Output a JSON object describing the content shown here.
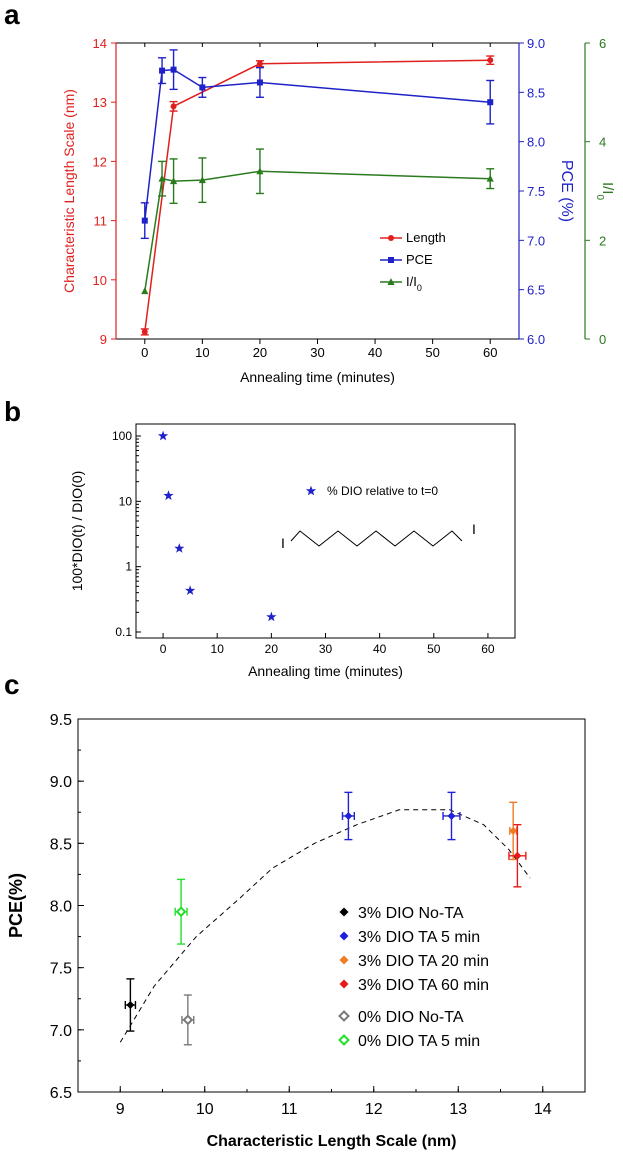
{
  "panels": [
    "a",
    "b",
    "c"
  ],
  "chart_data": [
    {
      "panel": "a",
      "type": "line",
      "xlabel": "Annealing time (minutes)",
      "x_ticks": [
        "0",
        "10",
        "20",
        "30",
        "40",
        "50",
        "60"
      ],
      "xlim": [
        -5,
        65
      ],
      "axes": [
        {
          "id": "left",
          "label": "Characteristic Length Scale (nm)",
          "color": "#e0201f",
          "lim": [
            9,
            14
          ],
          "ticks": [
            "9",
            "10",
            "11",
            "12",
            "13",
            "14"
          ]
        },
        {
          "id": "right1",
          "label": "PCE (%)",
          "color": "#1f22c8",
          "lim": [
            6.0,
            9.0
          ],
          "ticks": [
            "6.0",
            "6.5",
            "7.0",
            "7.5",
            "8.0",
            "8.5",
            "9.0"
          ]
        },
        {
          "id": "right2",
          "label_main": "I/I",
          "label_sub": "0",
          "color": "#2a7a1e",
          "lim": [
            0,
            6
          ],
          "ticks": [
            "0",
            "2",
            "4",
            "6"
          ]
        }
      ],
      "series": [
        {
          "name": "Length",
          "axis": "left",
          "color": "#e0201f",
          "marker": "circle",
          "x": [
            0,
            5,
            20,
            60
          ],
          "y": [
            9.12,
            12.93,
            13.65,
            13.71
          ],
          "err": [
            0.05,
            0.08,
            0.05,
            0.07
          ]
        },
        {
          "name": "PCE",
          "axis": "right1",
          "color": "#1f22c8",
          "marker": "square",
          "x": [
            0,
            3,
            5,
            10,
            20,
            60
          ],
          "y": [
            7.2,
            8.72,
            8.73,
            8.55,
            8.6,
            8.4
          ],
          "err": [
            0.18,
            0.13,
            0.2,
            0.1,
            0.15,
            0.22
          ]
        },
        {
          "name_main": "I/I",
          "name_sub": "0",
          "axis": "right2",
          "color": "#2a7a1e",
          "marker": "triangle",
          "x": [
            0,
            3,
            5,
            10,
            20,
            60
          ],
          "y": [
            0.97,
            3.25,
            3.2,
            3.22,
            3.4,
            3.25
          ],
          "err": [
            0,
            0.35,
            0.45,
            0.45,
            0.45,
            0.2
          ]
        }
      ],
      "legend_position": "center-right"
    },
    {
      "panel": "b",
      "type": "scatter",
      "xlabel": "Annealing time (minutes)",
      "ylabel": "100*DIO(t) / DIO(0)",
      "y_scale": "log",
      "ylim": [
        0.1,
        100
      ],
      "y_ticks": [
        "0.1",
        "1",
        "10",
        "100"
      ],
      "xlim": [
        -5,
        65
      ],
      "x_ticks": [
        "0",
        "10",
        "20",
        "30",
        "40",
        "50",
        "60"
      ],
      "series": [
        {
          "name": "% DIO relative to t=0",
          "color": "#1f22c8",
          "marker": "star",
          "x": [
            0,
            1,
            3,
            5,
            20
          ],
          "y": [
            100,
            12.2,
            1.9,
            0.43,
            0.17
          ]
        }
      ],
      "molecule_labels": [
        "I",
        "I"
      ],
      "legend_position": "upper-right"
    },
    {
      "panel": "c",
      "type": "scatter",
      "xlabel": "Characteristic Length Scale (nm)",
      "ylabel": "PCE(%)",
      "xlim": [
        8.5,
        14.5
      ],
      "ylim": [
        6.5,
        9.5
      ],
      "x_ticks": [
        "9",
        "10",
        "11",
        "12",
        "13",
        "14"
      ],
      "y_ticks": [
        "6.5",
        "7.0",
        "7.5",
        "8.0",
        "8.5",
        "9.0",
        "9.5"
      ],
      "series": [
        {
          "name": "3% DIO No-TA",
          "color": "#000000",
          "marker": "diamond",
          "points": [
            {
              "x": 9.12,
              "y": 7.2,
              "xerr": 0.06,
              "yerr": 0.21
            }
          ]
        },
        {
          "name": "3% DIO TA 5 min",
          "color": "#1f22d6",
          "marker": "diamond",
          "points": [
            {
              "x": 11.7,
              "y": 8.72,
              "xerr": 0.07,
              "yerr": 0.19
            },
            {
              "x": 12.92,
              "y": 8.72,
              "xerr": 0.1,
              "yerr": 0.19
            }
          ]
        },
        {
          "name": "3% DIO TA 20 min",
          "color": "#f07b22",
          "marker": "diamond",
          "points": [
            {
              "x": 13.65,
              "y": 8.6,
              "xerr": 0.04,
              "yerr": 0.23
            }
          ]
        },
        {
          "name": "3% DIO TA 60 min",
          "color": "#e51b1b",
          "marker": "diamond",
          "points": [
            {
              "x": 13.7,
              "y": 8.4,
              "xerr": 0.1,
              "yerr": 0.25
            }
          ]
        },
        {
          "name": "0% DIO No-TA",
          "color": "#7a7a7a",
          "marker": "open-diamond",
          "points": [
            {
              "x": 9.8,
              "y": 7.08,
              "xerr": 0.07,
              "yerr": 0.2
            }
          ]
        },
        {
          "name": "0% DIO TA 5 min",
          "color": "#22e02a",
          "marker": "open-diamond",
          "points": [
            {
              "x": 9.72,
              "y": 7.95,
              "xerr": 0.07,
              "yerr": 0.26
            }
          ]
        }
      ],
      "trend_line": {
        "style": "dashed",
        "color": "#000000",
        "x": [
          9.0,
          9.4,
          9.9,
          10.4,
          10.8,
          11.3,
          11.8,
          12.3,
          12.9,
          13.3,
          13.6,
          13.85
        ],
        "y": [
          6.9,
          7.35,
          7.75,
          8.05,
          8.3,
          8.5,
          8.65,
          8.77,
          8.77,
          8.65,
          8.45,
          8.22
        ]
      },
      "legend_position": "center"
    }
  ]
}
